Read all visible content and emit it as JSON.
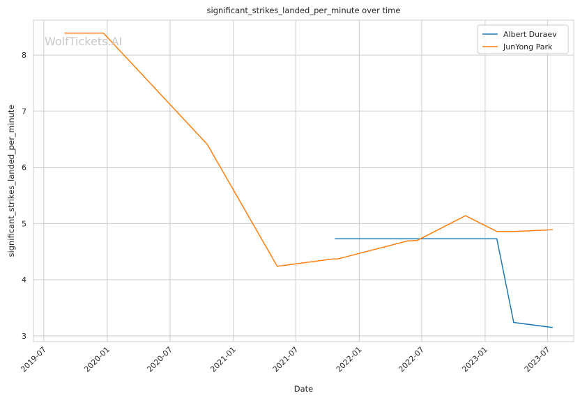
{
  "chart_data": {
    "type": "line",
    "title": "significant_strikes_landed_per_minute over time",
    "xlabel": "Date",
    "ylabel": "significant_strikes_landed_per_minute",
    "watermark": "WolfTickets.AI",
    "x_ticks": [
      "2019-07",
      "2020-01",
      "2020-07",
      "2021-01",
      "2021-07",
      "2022-01",
      "2022-07",
      "2023-01",
      "2023-07"
    ],
    "y_ticks": [
      3,
      4,
      5,
      6,
      7,
      8
    ],
    "xlim": [
      "2019-06-01",
      "2023-09-15"
    ],
    "ylim": [
      2.9,
      8.62
    ],
    "grid": true,
    "legend_position": "top-right",
    "series": [
      {
        "name": "Albert Duraev",
        "color": "#1f77b4",
        "points": [
          {
            "x": "2021-10-23",
            "y": 4.73
          },
          {
            "x": "2023-02-04",
            "y": 4.73
          },
          {
            "x": "2023-03-25",
            "y": 3.24
          },
          {
            "x": "2023-07-15",
            "y": 3.15
          }
        ]
      },
      {
        "name": "JunYong Park",
        "color": "#ff7f0e",
        "points": [
          {
            "x": "2019-08-31",
            "y": 8.39
          },
          {
            "x": "2019-12-21",
            "y": 8.39
          },
          {
            "x": "2020-10-17",
            "y": 6.41
          },
          {
            "x": "2021-05-08",
            "y": 4.24
          },
          {
            "x": "2021-10-16",
            "y": 4.37
          },
          {
            "x": "2021-10-30",
            "y": 4.37
          },
          {
            "x": "2022-05-21",
            "y": 4.69
          },
          {
            "x": "2022-06-18",
            "y": 4.7
          },
          {
            "x": "2022-11-05",
            "y": 5.14
          },
          {
            "x": "2023-02-04",
            "y": 4.86
          },
          {
            "x": "2023-03-25",
            "y": 4.86
          },
          {
            "x": "2023-07-15",
            "y": 4.89
          }
        ]
      }
    ]
  }
}
